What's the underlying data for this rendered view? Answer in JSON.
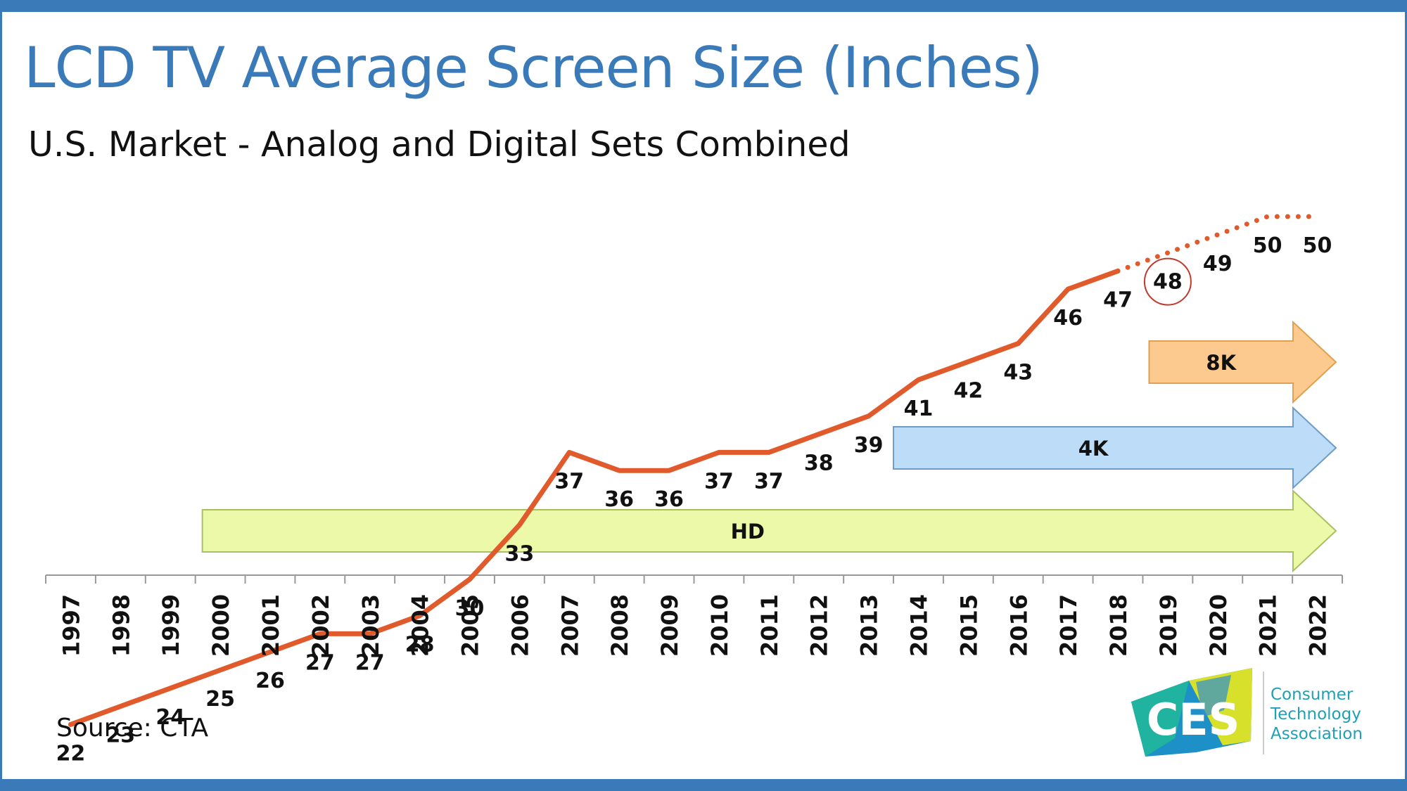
{
  "header": {
    "title": "LCD TV Average Screen Size (Inches)",
    "subtitle": "U.S. Market - Analog and Digital Sets Combined"
  },
  "footer": {
    "source": "Source: CTA"
  },
  "logo": {
    "mark_text": "CES",
    "org_line1": "Consumer",
    "org_line2": "Technology",
    "org_line3": "Association"
  },
  "colors": {
    "accent": "#3a7ab8",
    "line": "#e05a2b",
    "hd_fill": "#ecf9a8",
    "k4_fill": "#bcdcf8",
    "k8_fill": "#fcc98e"
  },
  "chart_data": {
    "type": "line",
    "title": "LCD TV Average Screen Size (Inches)",
    "subtitle": "U.S. Market - Analog and Digital Sets Combined",
    "xlabel": "",
    "ylabel": "",
    "x": [
      "1997",
      "1998",
      "1999",
      "2000",
      "2001",
      "2002",
      "2003",
      "2004",
      "2005",
      "2006",
      "2007",
      "2008",
      "2009",
      "2010",
      "2011",
      "2012",
      "2013",
      "2014",
      "2015",
      "2016",
      "2017",
      "2018",
      "2019",
      "2020",
      "2021",
      "2022"
    ],
    "series": [
      {
        "name": "Average Screen Size (Inches)",
        "values": [
          22,
          23,
          24,
          25,
          26,
          27,
          27,
          28,
          30,
          33,
          37,
          36,
          36,
          37,
          37,
          38,
          39,
          41,
          42,
          43,
          46,
          47,
          48,
          49,
          50,
          50
        ],
        "labels": [
          "22",
          "23",
          "24",
          "25",
          "26",
          "27",
          "27",
          "28",
          "30",
          "33",
          "37",
          "36",
          "36",
          "37",
          "37",
          "38",
          "39",
          "41",
          "42",
          "43",
          "46",
          "47",
          "48",
          "49",
          "50",
          "50"
        ],
        "forecast_from": "2018"
      }
    ],
    "highlighted_point": "2019",
    "ylim": [
      10,
      60
    ],
    "grid": false,
    "legend": "none",
    "eras": [
      {
        "label": "HD",
        "start": "2000",
        "end": "2022"
      },
      {
        "label": "4K",
        "start": "2014",
        "end": "2022"
      },
      {
        "label": "8K",
        "start": "2019",
        "end": "2022"
      }
    ]
  }
}
